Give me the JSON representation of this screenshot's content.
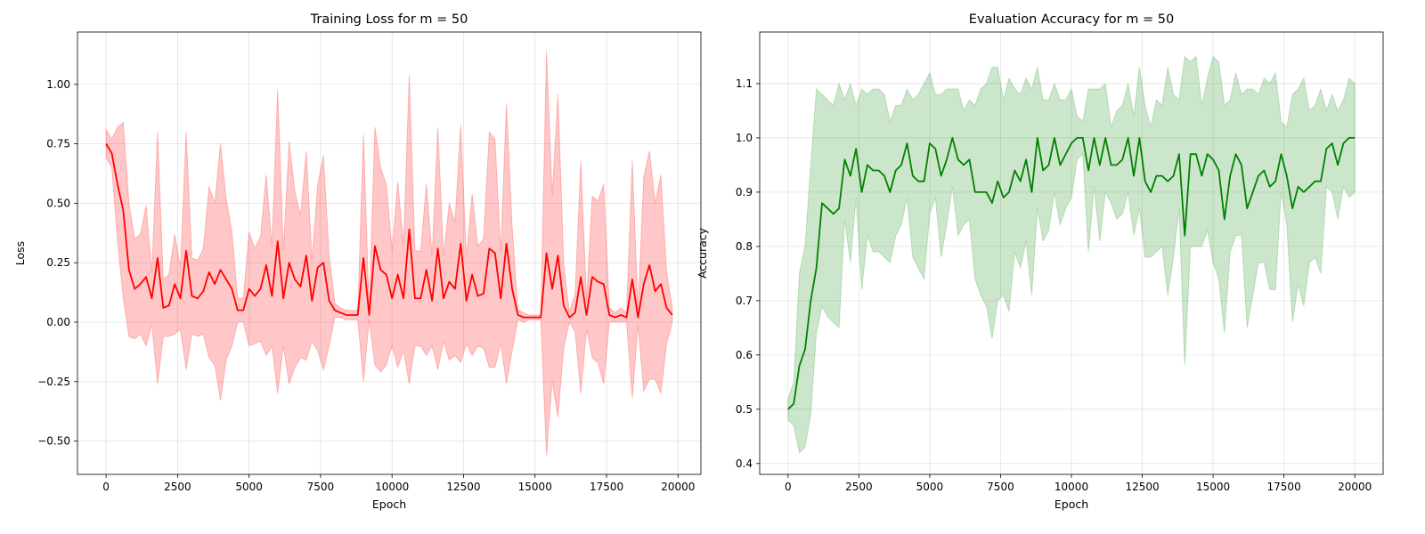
{
  "colors": {
    "loss_line": "#ff0000",
    "loss_band": "#ff0000",
    "acc_line": "#008000",
    "acc_band": "#008000"
  },
  "chart_data": [
    {
      "type": "line",
      "title": "Training Loss for m = 50",
      "xlabel": "Epoch",
      "ylabel": "Loss",
      "xlim": [
        -1000,
        20800
      ],
      "ylim": [
        -0.64,
        1.22
      ],
      "xticks": [
        0,
        2500,
        5000,
        7500,
        10000,
        12500,
        15000,
        17500,
        20000
      ],
      "xtick_labels": [
        "0",
        "2500",
        "5000",
        "7500",
        "10000",
        "12500",
        "15000",
        "17500",
        "20000"
      ],
      "yticks": [
        -0.5,
        -0.25,
        0.0,
        0.25,
        0.5,
        0.75,
        1.0
      ],
      "ytick_labels": [
        "−0.50",
        "−0.25",
        "0.00",
        "0.25",
        "0.50",
        "0.75",
        "1.00"
      ],
      "grid": true,
      "band": "mean ± std",
      "series": [
        {
          "x": [
            0,
            200,
            400,
            600,
            800,
            1000,
            1200,
            1400,
            1600,
            1800,
            2000,
            2200,
            2400,
            2600,
            2800,
            3000,
            3200,
            3400,
            3600,
            3800,
            4000,
            4200,
            4400,
            4600,
            4800,
            5000,
            5200,
            5400,
            5600,
            5800,
            6000,
            6200,
            6400,
            6600,
            6800,
            7000,
            7200,
            7400,
            7600,
            7800,
            8000,
            8200,
            8400,
            8600,
            8800,
            9000,
            9200,
            9400,
            9600,
            9800,
            10000,
            10200,
            10400,
            10600,
            10800,
            11000,
            11200,
            11400,
            11600,
            11800,
            12000,
            12200,
            12400,
            12600,
            12800,
            13000,
            13200,
            13400,
            13600,
            13800,
            14000,
            14200,
            14400,
            14600,
            14800,
            15000,
            15200,
            15400,
            15600,
            15800,
            16000,
            16200,
            16400,
            16600,
            16800,
            17000,
            17200,
            17400,
            17600,
            17800,
            18000,
            18200,
            18400,
            18600,
            18800,
            19000,
            19200,
            19400,
            19600,
            19800
          ],
          "mean": [
            0.75,
            0.71,
            0.58,
            0.47,
            0.22,
            0.14,
            0.16,
            0.19,
            0.1,
            0.27,
            0.06,
            0.07,
            0.16,
            0.1,
            0.3,
            0.11,
            0.1,
            0.13,
            0.21,
            0.16,
            0.22,
            0.18,
            0.14,
            0.05,
            0.05,
            0.14,
            0.11,
            0.14,
            0.24,
            0.11,
            0.34,
            0.1,
            0.25,
            0.18,
            0.15,
            0.28,
            0.09,
            0.23,
            0.25,
            0.09,
            0.05,
            0.04,
            0.03,
            0.03,
            0.03,
            0.27,
            0.03,
            0.32,
            0.22,
            0.2,
            0.1,
            0.2,
            0.1,
            0.39,
            0.1,
            0.1,
            0.22,
            0.09,
            0.31,
            0.1,
            0.17,
            0.14,
            0.33,
            0.09,
            0.2,
            0.11,
            0.12,
            0.31,
            0.29,
            0.1,
            0.33,
            0.14,
            0.03,
            0.02,
            0.02,
            0.02,
            0.02,
            0.29,
            0.14,
            0.28,
            0.07,
            0.02,
            0.04,
            0.19,
            0.03,
            0.19,
            0.17,
            0.16,
            0.03,
            0.02,
            0.03,
            0.02,
            0.18,
            0.02,
            0.16,
            0.24,
            0.13,
            0.16,
            0.06,
            0.03
          ],
          "upper": [
            0.81,
            0.77,
            0.82,
            0.84,
            0.5,
            0.35,
            0.37,
            0.49,
            0.21,
            0.8,
            0.18,
            0.2,
            0.37,
            0.23,
            0.8,
            0.27,
            0.26,
            0.31,
            0.57,
            0.5,
            0.75,
            0.52,
            0.38,
            0.1,
            0.1,
            0.38,
            0.31,
            0.36,
            0.62,
            0.32,
            0.98,
            0.3,
            0.76,
            0.55,
            0.45,
            0.72,
            0.26,
            0.58,
            0.7,
            0.28,
            0.08,
            0.06,
            0.05,
            0.05,
            0.05,
            0.79,
            0.05,
            0.82,
            0.65,
            0.58,
            0.3,
            0.59,
            0.32,
            1.04,
            0.3,
            0.3,
            0.58,
            0.28,
            0.82,
            0.28,
            0.5,
            0.42,
            0.83,
            0.27,
            0.54,
            0.32,
            0.35,
            0.8,
            0.77,
            0.29,
            0.92,
            0.4,
            0.05,
            0.04,
            0.03,
            0.03,
            0.03,
            1.14,
            0.53,
            0.96,
            0.25,
            0.04,
            0.12,
            0.68,
            0.09,
            0.53,
            0.51,
            0.58,
            0.06,
            0.04,
            0.06,
            0.04,
            0.68,
            0.05,
            0.61,
            0.72,
            0.5,
            0.62,
            0.21,
            0.06
          ],
          "lower": [
            0.69,
            0.65,
            0.34,
            0.1,
            -0.06,
            -0.07,
            -0.05,
            -0.1,
            -0.01,
            -0.26,
            -0.06,
            -0.06,
            -0.05,
            -0.03,
            -0.2,
            -0.05,
            -0.06,
            -0.05,
            -0.15,
            -0.18,
            -0.33,
            -0.16,
            -0.1,
            0.0,
            0.0,
            -0.1,
            -0.09,
            -0.08,
            -0.14,
            -0.1,
            -0.3,
            -0.1,
            -0.26,
            -0.19,
            -0.15,
            -0.16,
            -0.08,
            -0.12,
            -0.2,
            -0.1,
            0.02,
            0.02,
            0.01,
            0.01,
            0.01,
            -0.25,
            0.01,
            -0.18,
            -0.21,
            -0.18,
            -0.1,
            -0.19,
            -0.12,
            -0.26,
            -0.1,
            -0.1,
            -0.14,
            -0.1,
            -0.2,
            -0.08,
            -0.16,
            -0.14,
            -0.17,
            -0.09,
            -0.14,
            -0.1,
            -0.11,
            -0.19,
            -0.19,
            -0.09,
            -0.26,
            -0.12,
            0.01,
            0.0,
            0.01,
            0.01,
            0.01,
            -0.56,
            -0.25,
            -0.4,
            -0.11,
            0.0,
            -0.04,
            -0.3,
            -0.03,
            -0.15,
            -0.17,
            -0.26,
            0.0,
            0.0,
            0.0,
            0.0,
            -0.32,
            -0.01,
            -0.29,
            -0.24,
            -0.24,
            -0.3,
            -0.09,
            0.0
          ]
        }
      ]
    },
    {
      "type": "line",
      "title": "Evaluation Accuracy for m = 50",
      "xlabel": "Epoch",
      "ylabel": "Accuracy",
      "xlim": [
        -1000,
        21000
      ],
      "ylim": [
        0.38,
        1.195
      ],
      "xticks": [
        0,
        2500,
        5000,
        7500,
        10000,
        12500,
        15000,
        17500,
        20000
      ],
      "xtick_labels": [
        "0",
        "2500",
        "5000",
        "7500",
        "10000",
        "12500",
        "15000",
        "17500",
        "20000"
      ],
      "yticks": [
        0.4,
        0.5,
        0.6,
        0.7,
        0.8,
        0.9,
        1.0,
        1.1
      ],
      "ytick_labels": [
        "0.4",
        "0.5",
        "0.6",
        "0.7",
        "0.8",
        "0.9",
        "1.0",
        "1.1"
      ],
      "grid": true,
      "band": "mean ± std",
      "series": [
        {
          "x": [
            0,
            200,
            400,
            600,
            800,
            1000,
            1200,
            1400,
            1600,
            1800,
            2000,
            2200,
            2400,
            2600,
            2800,
            3000,
            3200,
            3400,
            3600,
            3800,
            4000,
            4200,
            4400,
            4600,
            4800,
            5000,
            5200,
            5400,
            5600,
            5800,
            6000,
            6200,
            6400,
            6600,
            6800,
            7000,
            7200,
            7400,
            7600,
            7800,
            8000,
            8200,
            8400,
            8600,
            8800,
            9000,
            9200,
            9400,
            9600,
            9800,
            10000,
            10200,
            10400,
            10600,
            10800,
            11000,
            11200,
            11400,
            11600,
            11800,
            12000,
            12200,
            12400,
            12600,
            12800,
            13000,
            13200,
            13400,
            13600,
            13800,
            14000,
            14200,
            14400,
            14600,
            14800,
            15000,
            15200,
            15400,
            15600,
            15800,
            16000,
            16200,
            16400,
            16600,
            16800,
            17000,
            17200,
            17400,
            17600,
            17800,
            18000,
            18200,
            18400,
            18600,
            18800,
            19000,
            19200,
            19400,
            19600,
            19800,
            20000
          ],
          "mean": [
            0.5,
            0.51,
            0.58,
            0.61,
            0.7,
            0.76,
            0.88,
            0.87,
            0.86,
            0.87,
            0.96,
            0.93,
            0.98,
            0.9,
            0.95,
            0.94,
            0.94,
            0.93,
            0.9,
            0.94,
            0.95,
            0.99,
            0.93,
            0.92,
            0.92,
            0.99,
            0.98,
            0.93,
            0.96,
            1.0,
            0.96,
            0.95,
            0.96,
            0.9,
            0.9,
            0.9,
            0.88,
            0.92,
            0.89,
            0.9,
            0.94,
            0.92,
            0.96,
            0.9,
            1.0,
            0.94,
            0.95,
            1.0,
            0.95,
            0.97,
            0.99,
            1.0,
            1.0,
            0.94,
            1.0,
            0.95,
            1.0,
            0.95,
            0.95,
            0.96,
            1.0,
            0.93,
            1.0,
            0.92,
            0.9,
            0.93,
            0.93,
            0.92,
            0.93,
            0.97,
            0.82,
            0.97,
            0.97,
            0.93,
            0.97,
            0.96,
            0.94,
            0.85,
            0.93,
            0.97,
            0.95,
            0.87,
            0.9,
            0.93,
            0.94,
            0.91,
            0.92,
            0.97,
            0.93,
            0.87,
            0.91,
            0.9,
            0.91,
            0.92,
            0.92,
            0.98,
            0.99,
            0.95,
            0.99,
            1.0,
            1.0
          ],
          "upper": [
            0.52,
            0.55,
            0.75,
            0.8,
            0.95,
            1.09,
            1.08,
            1.07,
            1.06,
            1.1,
            1.07,
            1.1,
            1.06,
            1.09,
            1.08,
            1.09,
            1.09,
            1.08,
            1.03,
            1.06,
            1.06,
            1.09,
            1.07,
            1.08,
            1.1,
            1.12,
            1.08,
            1.08,
            1.09,
            1.09,
            1.09,
            1.05,
            1.07,
            1.06,
            1.09,
            1.1,
            1.13,
            1.13,
            1.07,
            1.11,
            1.09,
            1.08,
            1.11,
            1.09,
            1.13,
            1.07,
            1.07,
            1.1,
            1.07,
            1.07,
            1.09,
            1.04,
            1.03,
            1.09,
            1.09,
            1.09,
            1.1,
            1.02,
            1.05,
            1.06,
            1.1,
            1.04,
            1.13,
            1.06,
            1.02,
            1.07,
            1.06,
            1.13,
            1.08,
            1.07,
            1.15,
            1.14,
            1.15,
            1.06,
            1.11,
            1.15,
            1.14,
            1.06,
            1.07,
            1.12,
            1.08,
            1.09,
            1.09,
            1.08,
            1.11,
            1.1,
            1.12,
            1.03,
            1.02,
            1.08,
            1.09,
            1.11,
            1.05,
            1.06,
            1.09,
            1.05,
            1.08,
            1.05,
            1.07,
            1.11,
            1.1
          ],
          "lower": [
            0.48,
            0.47,
            0.42,
            0.43,
            0.49,
            0.64,
            0.69,
            0.67,
            0.66,
            0.65,
            0.85,
            0.77,
            0.89,
            0.72,
            0.82,
            0.79,
            0.79,
            0.78,
            0.77,
            0.82,
            0.84,
            0.89,
            0.78,
            0.76,
            0.74,
            0.86,
            0.89,
            0.78,
            0.84,
            0.91,
            0.82,
            0.84,
            0.85,
            0.74,
            0.71,
            0.69,
            0.63,
            0.7,
            0.71,
            0.68,
            0.79,
            0.76,
            0.81,
            0.71,
            0.87,
            0.81,
            0.83,
            0.9,
            0.84,
            0.87,
            0.89,
            0.96,
            0.97,
            0.79,
            0.91,
            0.81,
            0.9,
            0.88,
            0.85,
            0.86,
            0.9,
            0.82,
            0.87,
            0.78,
            0.78,
            0.79,
            0.8,
            0.71,
            0.78,
            0.87,
            0.58,
            0.8,
            0.8,
            0.8,
            0.83,
            0.77,
            0.74,
            0.64,
            0.79,
            0.82,
            0.82,
            0.65,
            0.71,
            0.77,
            0.77,
            0.72,
            0.72,
            0.9,
            0.84,
            0.66,
            0.73,
            0.69,
            0.77,
            0.78,
            0.75,
            0.91,
            0.9,
            0.85,
            0.91,
            0.89,
            0.9
          ]
        }
      ]
    }
  ]
}
